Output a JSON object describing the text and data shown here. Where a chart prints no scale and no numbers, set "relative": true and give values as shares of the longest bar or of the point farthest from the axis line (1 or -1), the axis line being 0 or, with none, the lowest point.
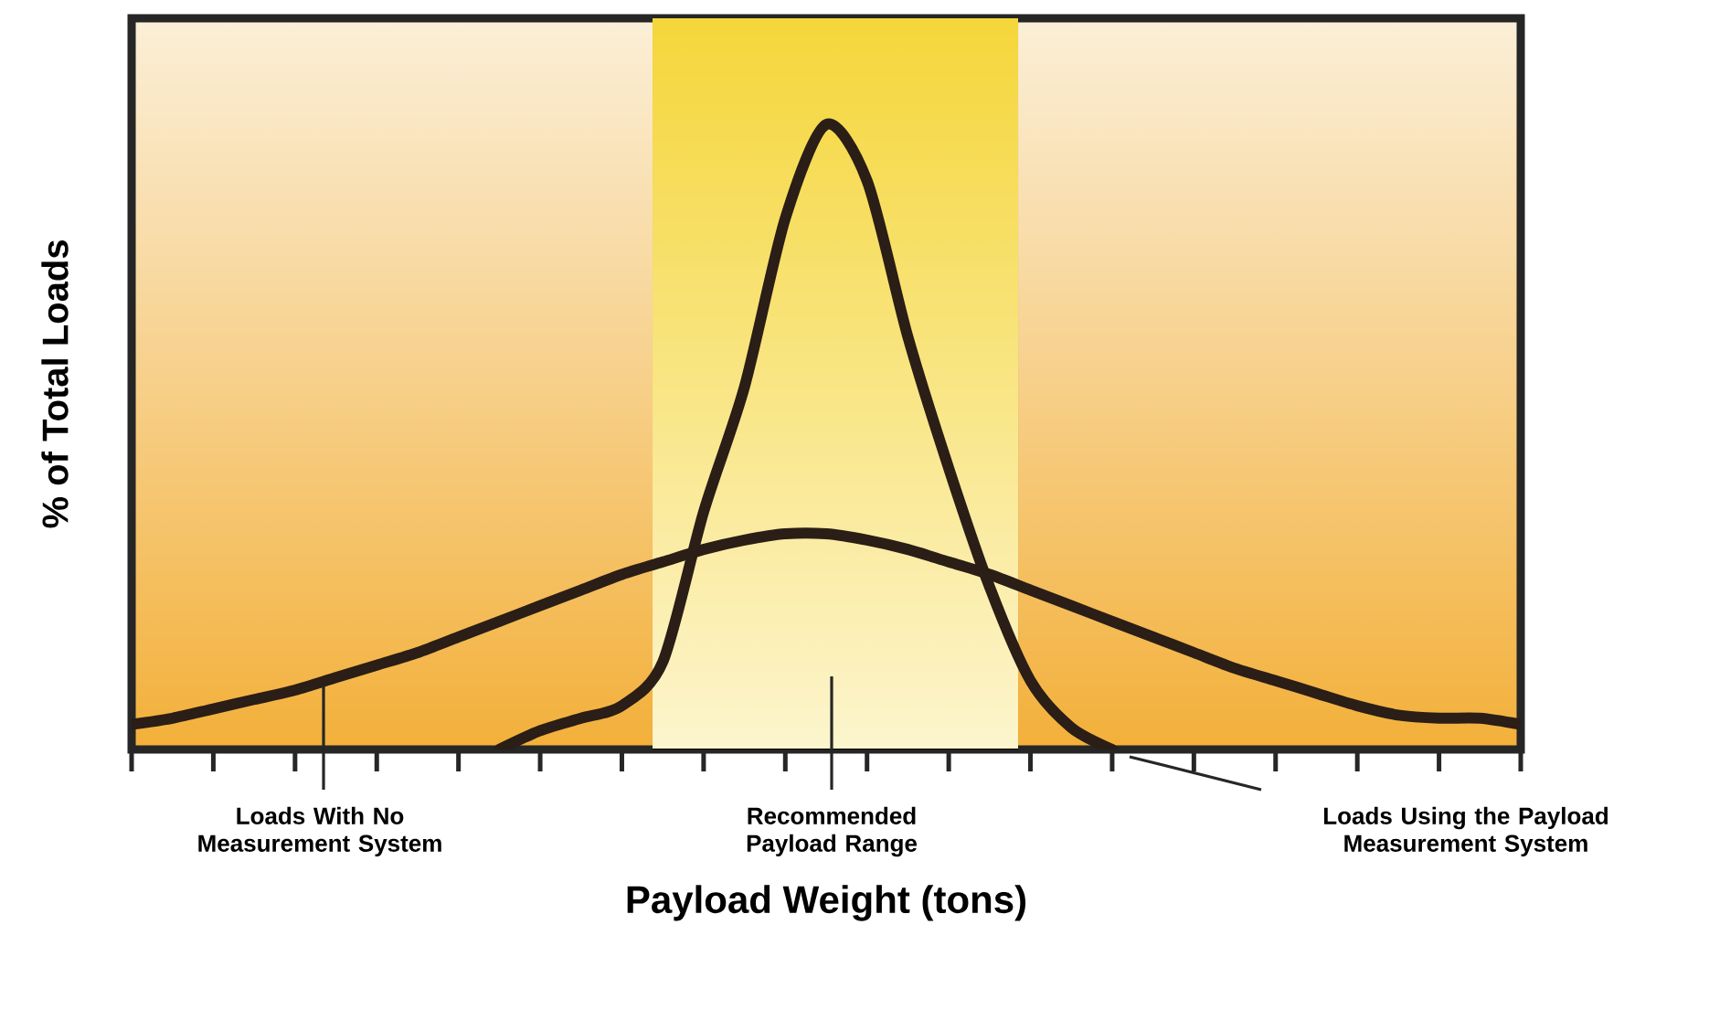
{
  "chart_data": {
    "type": "line",
    "relative": true,
    "xlabel": "Payload Weight (tons)",
    "ylabel": "% of Total Loads",
    "categories": [
      null,
      null,
      null,
      null,
      null,
      null,
      null,
      null,
      null,
      null,
      null,
      null,
      null,
      null,
      null,
      null,
      null,
      null,
      null,
      null,
      null,
      null,
      null,
      null,
      null,
      null,
      null,
      null,
      null,
      null,
      null,
      null,
      null,
      null,
      null
    ],
    "series": [
      {
        "color": "#2a1e16",
        "values": [
          0.04,
          0.05,
          0.065,
          0.08,
          0.095,
          0.115,
          0.135,
          0.155,
          0.18,
          0.205,
          0.23,
          0.255,
          0.28,
          0.3,
          0.32,
          0.335,
          0.345,
          0.345,
          0.335,
          0.32,
          0.3,
          0.28,
          0.255,
          0.23,
          0.205,
          0.18,
          0.155,
          0.13,
          0.11,
          0.09,
          0.07,
          0.055,
          0.05,
          0.05,
          0.04
        ]
      },
      {
        "color": "#2a1e16",
        "values": [
          null,
          null,
          null,
          null,
          null,
          null,
          null,
          null,
          null,
          0.0,
          0.03,
          0.05,
          0.07,
          0.14,
          0.38,
          0.58,
          0.85,
          1.0,
          0.91,
          0.66,
          0.45,
          0.26,
          0.11,
          0.035,
          0.0,
          null,
          null,
          null,
          null,
          null,
          null,
          null,
          null,
          null,
          null
        ]
      }
    ],
    "annotations": [
      "Loads With No Measurement System",
      "Recommended Payload Range",
      "Loads Using the Payload Measurement System"
    ],
    "line_style": "solid",
    "grid": false
  }
}
